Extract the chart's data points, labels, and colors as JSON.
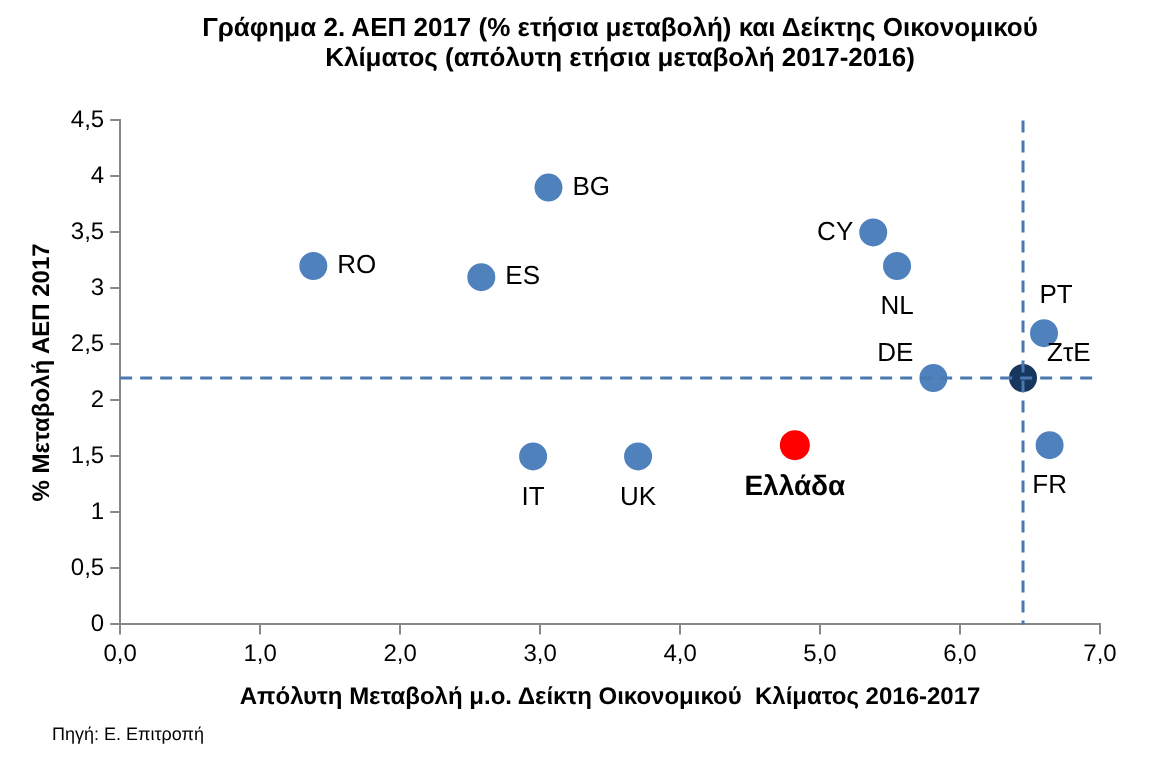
{
  "chart_data": {
    "type": "scatter",
    "title": "Γράφημα 2. ΑΕΠ 2017 (% ετήσια μεταβολή) και Δείκτης Οικονομικού Κλίματος (απόλυτη ετήσια μεταβολή 2017-2016)",
    "xlabel": "Απόλυτη Μεταβολή μ.ο. Δείκτη Οικονομικού  Κλίματος 2016-2017",
    "ylabel": "% Μεταβολή ΑΕΠ 2017",
    "annotations": [
      "Πηγή: Ε. Επιτροπή"
    ],
    "xlim": [
      0,
      7
    ],
    "ylim": [
      0,
      4.5
    ],
    "xticks": [
      {
        "value": 0,
        "label": "0,0"
      },
      {
        "value": 1,
        "label": "1,0"
      },
      {
        "value": 2,
        "label": "2,0"
      },
      {
        "value": 3,
        "label": "3,0"
      },
      {
        "value": 4,
        "label": "4,0"
      },
      {
        "value": 5,
        "label": "5,0"
      },
      {
        "value": 6,
        "label": "6,0"
      },
      {
        "value": 7,
        "label": "7,0"
      }
    ],
    "yticks": [
      0,
      {
        "value": 0.5,
        "label": "0,5"
      },
      1,
      {
        "value": 1.5,
        "label": "1,5"
      },
      2,
      {
        "value": 2.5,
        "label": "2,5"
      },
      3,
      {
        "value": 3.5,
        "label": "3,5"
      },
      4,
      {
        "value": 4.5,
        "label": "4,5"
      }
    ],
    "grid": false,
    "legend": false,
    "marker": "circle",
    "ref_lines": [
      {
        "axis": "y",
        "value": 2.2,
        "color": "#4a78b0",
        "line_style": "dashed"
      },
      {
        "axis": "x",
        "value": 6.45,
        "color": "#4a78b0",
        "line_style": "dashed"
      }
    ],
    "series": [
      {
        "name": "RO",
        "color": "#4f81bd",
        "x": [
          1.38
        ],
        "values": [
          3.2
        ]
      },
      {
        "name": "ES",
        "color": "#4f81bd",
        "x": [
          2.58
        ],
        "values": [
          3.1
        ]
      },
      {
        "name": "BG",
        "color": "#4f81bd",
        "x": [
          3.06
        ],
        "values": [
          3.9
        ]
      },
      {
        "name": "IT",
        "color": "#4f81bd",
        "x": [
          2.95
        ],
        "values": [
          1.5
        ]
      },
      {
        "name": "UK",
        "color": "#4f81bd",
        "x": [
          3.7
        ],
        "values": [
          1.5
        ]
      },
      {
        "name": "Ελλάδα",
        "color": "#ff0000",
        "x": [
          4.82
        ],
        "values": [
          1.6
        ]
      },
      {
        "name": "CY",
        "color": "#4f81bd",
        "x": [
          5.38
        ],
        "values": [
          3.5
        ]
      },
      {
        "name": "NL",
        "color": "#4f81bd",
        "x": [
          5.55
        ],
        "values": [
          3.2
        ]
      },
      {
        "name": "DE",
        "color": "#4f81bd",
        "x": [
          5.81
        ],
        "values": [
          2.2
        ]
      },
      {
        "name": "ΖτΕ",
        "color": "#17375e",
        "x": [
          6.45
        ],
        "values": [
          2.2
        ]
      },
      {
        "name": "PT",
        "color": "#4f81bd",
        "x": [
          6.6
        ],
        "values": [
          2.6
        ]
      },
      {
        "name": "FR",
        "color": "#4f81bd",
        "x": [
          6.64
        ],
        "values": [
          1.6
        ]
      }
    ]
  }
}
